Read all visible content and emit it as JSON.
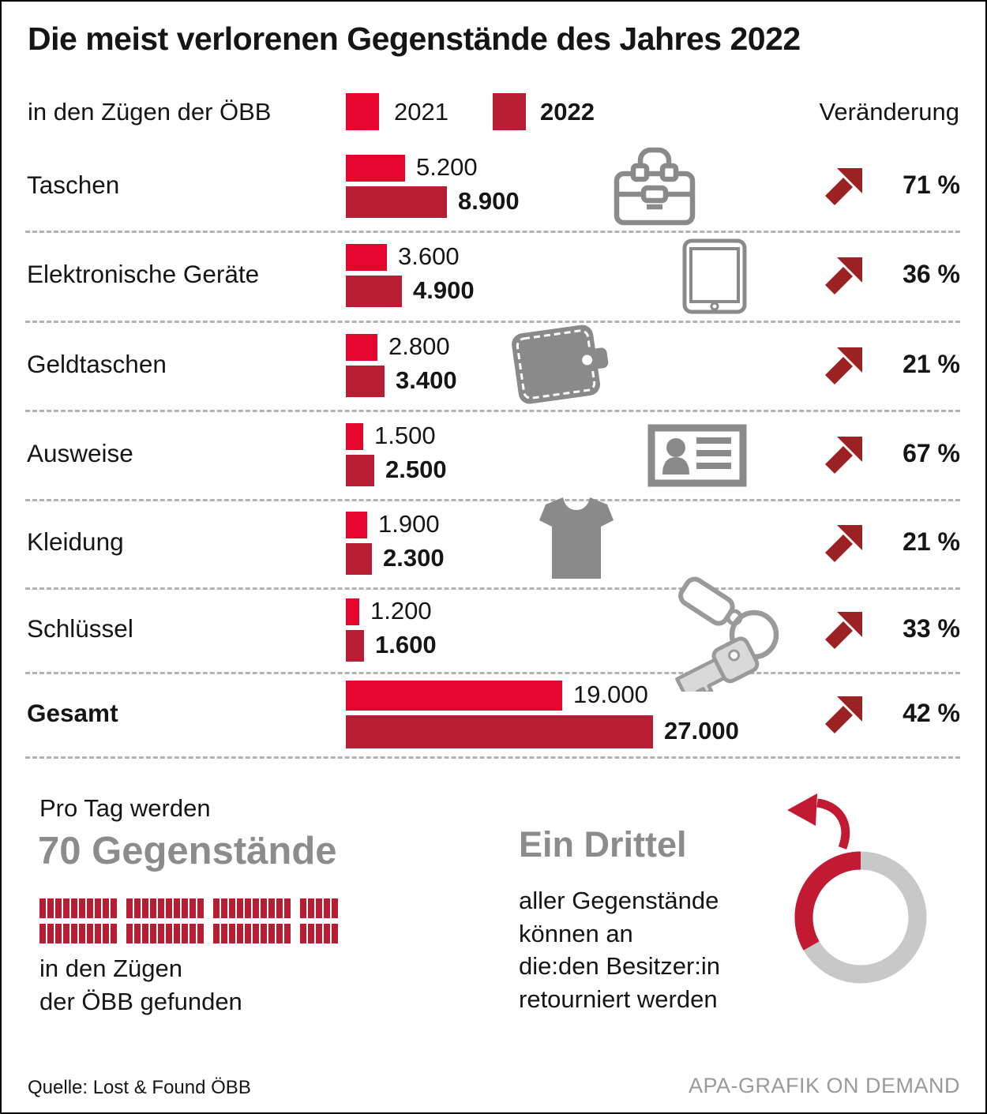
{
  "page": {
    "title": "Die meist verlorenen Gegenstände des Jahres 2022",
    "subtitle": "in den Zügen der ÖBB",
    "change_header": "Veränderung"
  },
  "legend": [
    {
      "label": "2021",
      "color": "#e4062d"
    },
    {
      "label": "2022",
      "color": "#b71e34"
    }
  ],
  "chart_data": {
    "type": "bar",
    "orientation": "horizontal",
    "categories": [
      "Taschen",
      "Elektronische Geräte",
      "Geldtaschen",
      "Ausweise",
      "Kleidung",
      "Schlüssel",
      "Gesamt"
    ],
    "series": [
      {
        "name": "2021",
        "color": "#e4062d",
        "values": [
          5200,
          3600,
          2800,
          1500,
          1900,
          1200,
          19000
        ]
      },
      {
        "name": "2022",
        "color": "#b71e34",
        "values": [
          8900,
          4900,
          3400,
          2500,
          2300,
          1600,
          27000
        ]
      }
    ],
    "value_labels_2021": [
      "5.200",
      "3.600",
      "2.800",
      "1.500",
      "1.900",
      "1.200",
      "19.000"
    ],
    "value_labels_2022": [
      "8.900",
      "4.900",
      "3.400",
      "2.500",
      "2.300",
      "1.600",
      "27.000"
    ],
    "change_percent": [
      71,
      36,
      21,
      67,
      21,
      33,
      42
    ],
    "change_labels": [
      "71 %",
      "36 %",
      "21 %",
      "67 %",
      "21 %",
      "33 %",
      "42 %"
    ],
    "icons": [
      "briefcase",
      "tablet",
      "wallet",
      "id-card",
      "tshirt",
      "keys",
      ""
    ],
    "legend_position": "top",
    "grid": "dashed-row-separators"
  },
  "daily": {
    "intro": "Pro Tag werden",
    "headline": "70 Gegenstände",
    "count": 70,
    "outro_line1": "in den Zügen",
    "outro_line2": "der ÖBB gefunden"
  },
  "returned": {
    "headline": "Ein Drittel",
    "line1": "aller Gegenstände",
    "line2": "können an",
    "line3": "die:den Besitzer:in",
    "line4": "retourniert werden",
    "fraction": "1/3"
  },
  "footer": {
    "source": "Quelle: Lost & Found ÖBB",
    "credit": "APA-GRAFIK ON DEMAND"
  },
  "colors": {
    "red_2021": "#e4062d",
    "red_2022": "#b71e34",
    "arrow_dark_red": "#9c2123",
    "icon_gray": "#8a8a8a",
    "key_gray_fill": "#d9d9d9",
    "donut_gray": "#c8c8c8",
    "donut_red": "#c31a33",
    "headline_gray": "#8c8c8c",
    "dashed_line": "#b3b3b3"
  }
}
